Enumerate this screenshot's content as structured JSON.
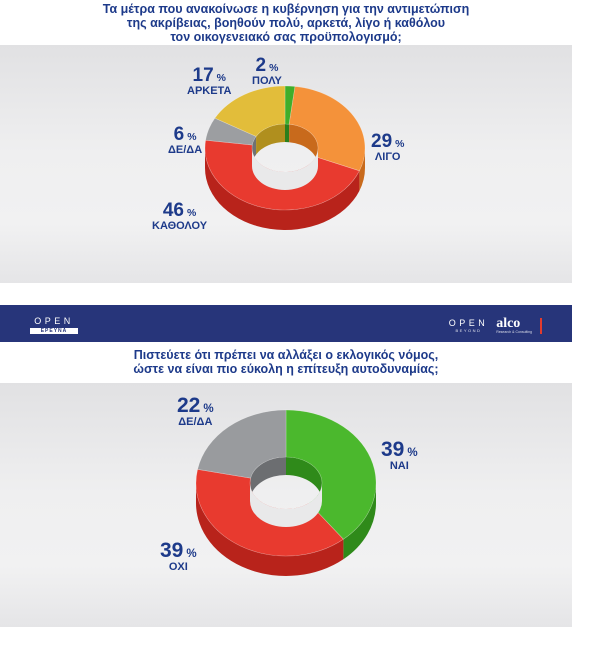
{
  "top": {
    "title_lines": [
      "Τα μέτρα που ανακοίνωσε η κυβέρνηση για την αντιμετώπιση",
      "της ακρίβειας, βοηθούν πολύ, αρκετά, λίγο ή καθόλου",
      "τον οικογενειακό σας προϋπολογισμό;"
    ]
  },
  "bottom": {
    "brand_left_main": "OPEN",
    "brand_left_sub": "ΕΡΕΥΝΑ",
    "brand_right_main": "OPEN",
    "brand_right_sub": "BEYOND",
    "brand_alco": "alco",
    "brand_alco_sub": "Research & Consulting",
    "title_lines": [
      "Πιστεύετε ότι πρέπει να αλλάξει ο εκλογικός νόμος,",
      "ώστε να είναι πιο εύκολη η επίτευξη αυτοδυναμίας;"
    ]
  },
  "chart_data": [
    {
      "type": "pie",
      "title": "Τα μέτρα που ανακοίνωσε η κυβέρνηση για την αντιμετώπιση της ακρίβειας, βοηθούν πολύ, αρκετά, λίγο ή καθόλου τον οικογενειακό σας προϋπολογισμό;",
      "categories": [
        "ΠΟΛΥ",
        "ΛΙΓΟ",
        "ΚΑΘΟΛΟΥ",
        "ΔΕ/ΔΑ",
        "ΑΡΚΕΤΑ"
      ],
      "values": [
        2,
        29,
        46,
        6,
        17
      ],
      "unit": "%",
      "colors": [
        "#3fae2a",
        "#f4923a",
        "#e83a2f",
        "#9c9ea1",
        "#e2bd3a"
      ],
      "side_colors": [
        "#2a7f1c",
        "#c86a1c",
        "#b8231b",
        "#6f7174",
        "#b08f1e"
      ]
    },
    {
      "type": "pie",
      "title": "Πιστεύετε ότι πρέπει να αλλάξει ο εκλογικός νόμος, ώστε να είναι πιο εύκολη η επίτευξη αυτοδυναμίας;",
      "categories": [
        "ΝΑΙ",
        "ΟΧΙ",
        "ΔΕ/ΔΑ"
      ],
      "values": [
        39,
        39,
        22
      ],
      "unit": "%",
      "colors": [
        "#4bb82d",
        "#e83a2f",
        "#999b9e"
      ],
      "side_colors": [
        "#2f8a1a",
        "#b8231b",
        "#6c6e71"
      ]
    }
  ]
}
